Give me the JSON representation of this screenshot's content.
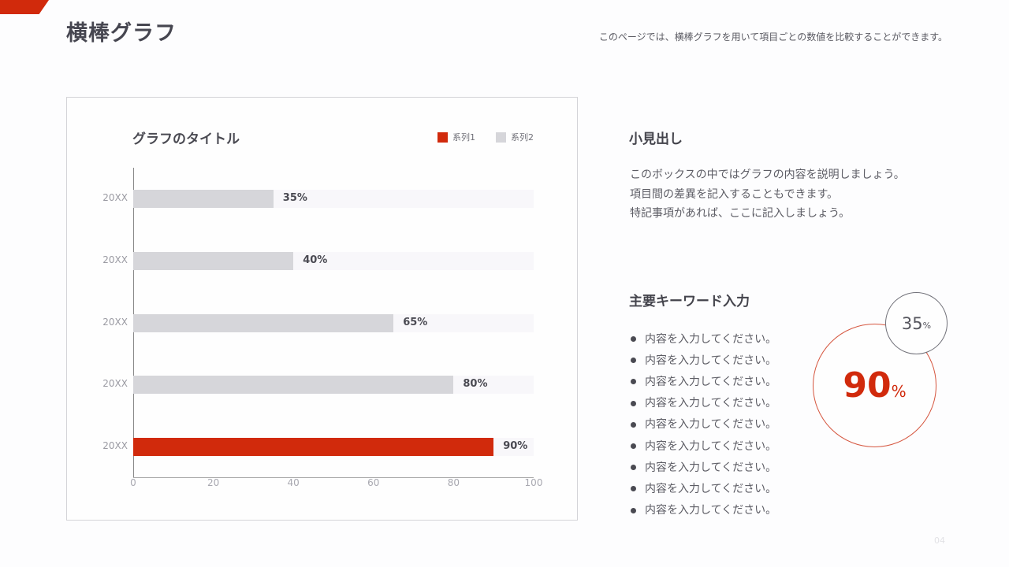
{
  "header": {
    "title": "横棒グラフ",
    "description": "このページでは、横棒グラフを用いて項目ごとの数値を比較することができます。",
    "accent_color": "#d12a0c"
  },
  "chart": {
    "title": "グラフのタイトル",
    "legend": [
      {
        "label": "系列1",
        "color": "#d12a0c"
      },
      {
        "label": "系列2",
        "color": "#d6d6da"
      }
    ],
    "rows": [
      {
        "category": "20XX",
        "value": 35,
        "label": "35%",
        "series": "系列2"
      },
      {
        "category": "20XX",
        "value": 40,
        "label": "40%",
        "series": "系列2"
      },
      {
        "category": "20XX",
        "value": 65,
        "label": "65%",
        "series": "系列2"
      },
      {
        "category": "20XX",
        "value": 80,
        "label": "80%",
        "series": "系列2"
      },
      {
        "category": "20XX",
        "value": 90,
        "label": "90%",
        "series": "系列1"
      }
    ],
    "x_ticks": [
      "0",
      "20",
      "40",
      "60",
      "80",
      "100"
    ]
  },
  "chart_data": {
    "type": "bar",
    "orientation": "horizontal",
    "title": "グラフのタイトル",
    "categories": [
      "20XX",
      "20XX",
      "20XX",
      "20XX",
      "20XX"
    ],
    "series": [
      {
        "name": "系列1",
        "color": "#d12a0c",
        "values": [
          null,
          null,
          null,
          null,
          90
        ]
      },
      {
        "name": "系列2",
        "color": "#d6d6da",
        "values": [
          35,
          40,
          65,
          80,
          null
        ]
      }
    ],
    "values": [
      35,
      40,
      65,
      80,
      90
    ],
    "data_labels": [
      "35%",
      "40%",
      "65%",
      "80%",
      "90%"
    ],
    "xlabel": "",
    "ylabel": "",
    "xlim": [
      0,
      100
    ],
    "x_ticks": [
      0,
      20,
      40,
      60,
      80,
      100
    ],
    "legend_position": "top-right",
    "grid": false
  },
  "side": {
    "heading": "小見出し",
    "description_lines": [
      "このボックスの中ではグラフの内容を説明しましょう。",
      "項目間の差異を記入することもできます。",
      "特記事項があれば、ここに記入しましょう。"
    ],
    "keywords_heading": "主要キーワード入力",
    "bullets": [
      "内容を入力してください。",
      "内容を入力してください。",
      "内容を入力してください。",
      "内容を入力してください。",
      "内容を入力してください。",
      "内容を入力してください。",
      "内容を入力してください。",
      "内容を入力してください。",
      "内容を入力してください。"
    ],
    "big_circle": {
      "value": "90",
      "unit": "%",
      "color": "#d12a0c"
    },
    "small_circle": {
      "value": "35",
      "unit": "%"
    }
  },
  "footer": {
    "page_number": "04"
  }
}
